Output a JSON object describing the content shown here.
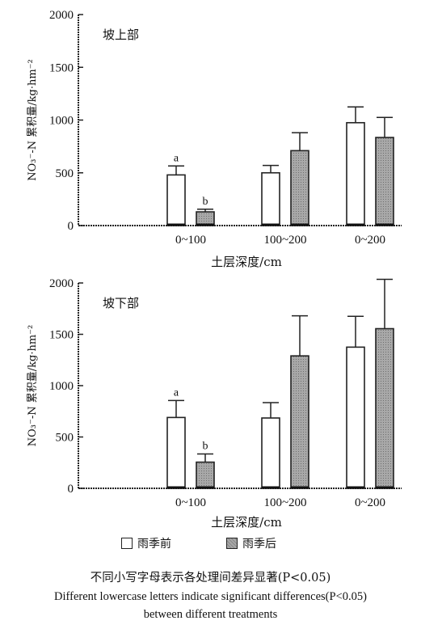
{
  "chart_data": [
    {
      "type": "bar",
      "panel_title": "坡上部",
      "xlabel": "土层深度/cm",
      "ylabel": "NO₃⁻-N 累积量/kg·hm⁻²",
      "ylim": [
        0,
        2000
      ],
      "yticks": [
        "0",
        "500",
        "1000",
        "1500",
        "2000"
      ],
      "categories": [
        "0~100",
        "100~200",
        "0~200"
      ],
      "series": [
        {
          "name": "雨季前",
          "values": [
            480,
            500,
            975
          ],
          "errors": [
            85,
            70,
            150
          ],
          "labels": [
            "a",
            "",
            ""
          ]
        },
        {
          "name": "雨季后",
          "values": [
            130,
            710,
            835
          ],
          "errors": [
            25,
            170,
            190
          ],
          "labels": [
            "b",
            "",
            ""
          ]
        }
      ]
    },
    {
      "type": "bar",
      "panel_title": "坡下部",
      "xlabel": "土层深度/cm",
      "ylabel": "NO₃⁻-N 累积量/kg·hm⁻²",
      "ylim": [
        0,
        2000
      ],
      "yticks": [
        "0",
        "500",
        "1000",
        "1500",
        "2000"
      ],
      "categories": [
        "0~100",
        "100~200",
        "0~200"
      ],
      "series": [
        {
          "name": "雨季前",
          "values": [
            690,
            685,
            1375
          ],
          "errors": [
            165,
            150,
            300
          ],
          "labels": [
            "a",
            "",
            ""
          ]
        },
        {
          "name": "雨季后",
          "values": [
            255,
            1290,
            1555
          ],
          "errors": [
            80,
            390,
            480
          ],
          "labels": [
            "b",
            "",
            ""
          ]
        }
      ]
    }
  ],
  "legend": {
    "before": "雨季前",
    "after": "雨季后"
  },
  "caption": {
    "cn": "不同小写字母表示各处理间差异显著(P<0.05)",
    "en1": "Different lowercase letters indicate significant differences(P<0.05)",
    "en2": "between different treatments"
  },
  "colors": {
    "before_fill": "#ffffff",
    "after_fill": "#a8a8a8",
    "axis": "#222222"
  }
}
